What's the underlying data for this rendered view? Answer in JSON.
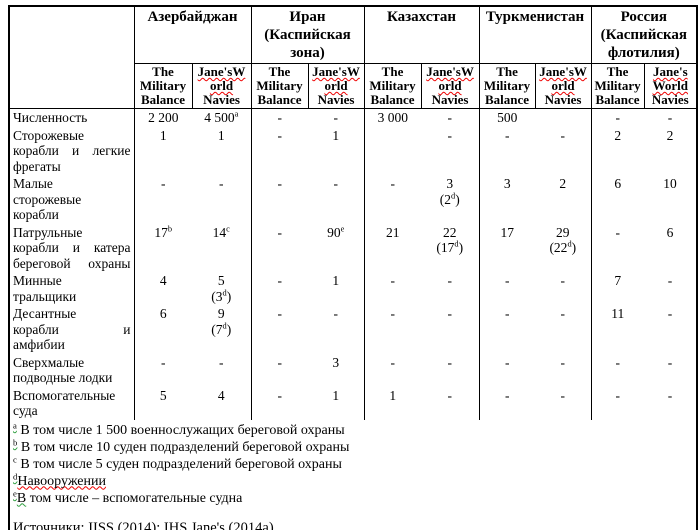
{
  "colors": {
    "text": "#000000",
    "border": "#000000",
    "background": "#ffffff",
    "spellcheck_underline_red": "#ee0000",
    "grammar_underline_green": "#2e9e3e"
  },
  "table": {
    "countries": [
      {
        "slug": "azerbaijan",
        "name_lines": [
          "Азербайджан"
        ],
        "columns": [
          {
            "lines": [
              {
                "t": "The"
              },
              {
                "t": "Military"
              },
              {
                "t": "Balance"
              }
            ]
          },
          {
            "lines": [
              {
                "t": "Jane'sW",
                "wavy": "red"
              },
              {
                "t": "orld",
                "wavy": "red"
              },
              {
                "t": "Navies"
              }
            ]
          }
        ]
      },
      {
        "slug": "iran",
        "name_lines": [
          "Иран",
          "(Каспийская",
          "зона)"
        ],
        "columns": [
          {
            "lines": [
              {
                "t": "The"
              },
              {
                "t": "Military"
              },
              {
                "t": "Balance"
              }
            ]
          },
          {
            "lines": [
              {
                "t": "Jane'sW",
                "wavy": "red"
              },
              {
                "t": "orld",
                "wavy": "red"
              },
              {
                "t": "Navies"
              }
            ]
          }
        ]
      },
      {
        "slug": "kazakhstan",
        "name_lines": [
          "Казахстан"
        ],
        "columns": [
          {
            "lines": [
              {
                "t": "The"
              },
              {
                "t": "Military"
              },
              {
                "t": "Balance"
              }
            ]
          },
          {
            "lines": [
              {
                "t": "Jane'sW",
                "wavy": "red"
              },
              {
                "t": "orld",
                "wavy": "red"
              },
              {
                "t": "Navies"
              }
            ]
          }
        ]
      },
      {
        "slug": "turkmenistan",
        "name_lines": [
          "Туркменистан"
        ],
        "columns": [
          {
            "lines": [
              {
                "t": "The"
              },
              {
                "t": "Military"
              },
              {
                "t": "Balance"
              }
            ]
          },
          {
            "lines": [
              {
                "t": "Jane'sW",
                "wavy": "red"
              },
              {
                "t": "orld",
                "wavy": "red"
              },
              {
                "t": "Navies"
              }
            ]
          }
        ]
      },
      {
        "slug": "russia",
        "name_lines": [
          "Россия",
          "(Каспийская",
          "флотилия)"
        ],
        "columns": [
          {
            "lines": [
              {
                "t": "The"
              },
              {
                "t": "Military"
              },
              {
                "t": "Balance"
              }
            ]
          },
          {
            "lines": [
              {
                "t": "Jane's",
                "wavy": "red"
              },
              {
                "t": "World",
                "wavy": "red"
              },
              {
                "t": "Navies"
              }
            ]
          }
        ]
      }
    ],
    "rows": [
      {
        "slug": "personnel",
        "label_lines": [
          {
            "t": "Численность"
          }
        ],
        "cells": [
          "2 200",
          "4 500^a",
          "-",
          "-",
          "3 000",
          "-",
          "500",
          "",
          "-",
          "-"
        ]
      },
      {
        "slug": "patrol-ships-light-frigates",
        "label_lines": [
          {
            "t": "Сторожевые"
          },
          {
            "t": "корабли и легкие",
            "j": true
          },
          {
            "t": "фрегаты"
          }
        ],
        "cells": [
          "1",
          "1",
          "-",
          "1",
          "",
          "-",
          "-",
          "-",
          "2",
          "2"
        ]
      },
      {
        "slug": "small-patrol-ships",
        "label_lines": [
          {
            "t": "Малые"
          },
          {
            "t": "сторожевые"
          },
          {
            "t": "корабли"
          }
        ],
        "cells": [
          "-",
          "-",
          "-",
          "-",
          "-",
          "3\n(2^d)",
          "3",
          "2",
          "6",
          "10"
        ]
      },
      {
        "slug": "patrol-boats-coast-guard",
        "label_lines": [
          {
            "t": "Патрульные"
          },
          {
            "t": "корабли и катера",
            "j": true
          },
          {
            "t": "береговой охраны",
            "j": true
          }
        ],
        "cells": [
          "17^b",
          "14^c",
          "-",
          "90^e",
          "21",
          "22\n(17^d)",
          "17",
          "29\n(22^d)",
          "-",
          "6"
        ]
      },
      {
        "slug": "minesweepers",
        "label_lines": [
          {
            "t": "Минные"
          },
          {
            "t": "тральщики"
          }
        ],
        "cells": [
          "4",
          "5\n(3^d)",
          "-",
          "1",
          "-",
          "-",
          "-",
          "-",
          "7",
          "-"
        ]
      },
      {
        "slug": "landing-ships-amphibious",
        "label_lines": [
          {
            "t": "Десантные"
          },
          {
            "t": "корабли и",
            "j": true
          },
          {
            "t": "амфибии"
          }
        ],
        "cells": [
          "6",
          "9\n(7^d)",
          "-",
          "-",
          "-",
          "-",
          "-",
          "-",
          "11",
          "-"
        ]
      },
      {
        "slug": "midget-submarines",
        "label_lines": [
          {
            "t": "Сверхмалые"
          },
          {
            "t": "подводные лодки"
          }
        ],
        "cells": [
          "-",
          "-",
          "-",
          "3",
          "-",
          "-",
          "-",
          "-",
          "-",
          "-"
        ]
      },
      {
        "slug": "auxiliary-vessels",
        "label_lines": [
          {
            "t": "Вспомогательные"
          },
          {
            "t": "суда"
          }
        ],
        "cells": [
          "5",
          "4",
          "-",
          "1",
          "1",
          "-",
          "-",
          "-",
          "-",
          "-"
        ]
      }
    ]
  },
  "footnotes": [
    {
      "slug": "a",
      "segments": [
        {
          "t": "a",
          "sup": true,
          "wavy": "green"
        },
        {
          "t": " В том числе 1 500 военнослужащих береговой охраны"
        }
      ]
    },
    {
      "slug": "b",
      "segments": [
        {
          "t": "b",
          "sup": true,
          "wavy": "green"
        },
        {
          "t": " В том числе 10 суден подразделений береговой охраны"
        }
      ]
    },
    {
      "slug": "c",
      "segments": [
        {
          "t": "c",
          "sup": true
        },
        {
          "t": " В том числе 5 суден подразделений береговой охраны"
        }
      ]
    },
    {
      "slug": "d",
      "segments": [
        {
          "t": "d",
          "sup": true,
          "wavy": "green"
        },
        {
          "t": "Навооружении",
          "wavy": "red"
        }
      ]
    },
    {
      "slug": "e",
      "segments": [
        {
          "t": "e",
          "sup": true,
          "wavy": "green"
        },
        {
          "t": "В",
          "wavy": "green"
        },
        {
          "t": " том числе – вспомогательные судна"
        }
      ]
    }
  ],
  "sources_line": "Источники: IISS (2014); IHS Jane's (2014a)"
}
